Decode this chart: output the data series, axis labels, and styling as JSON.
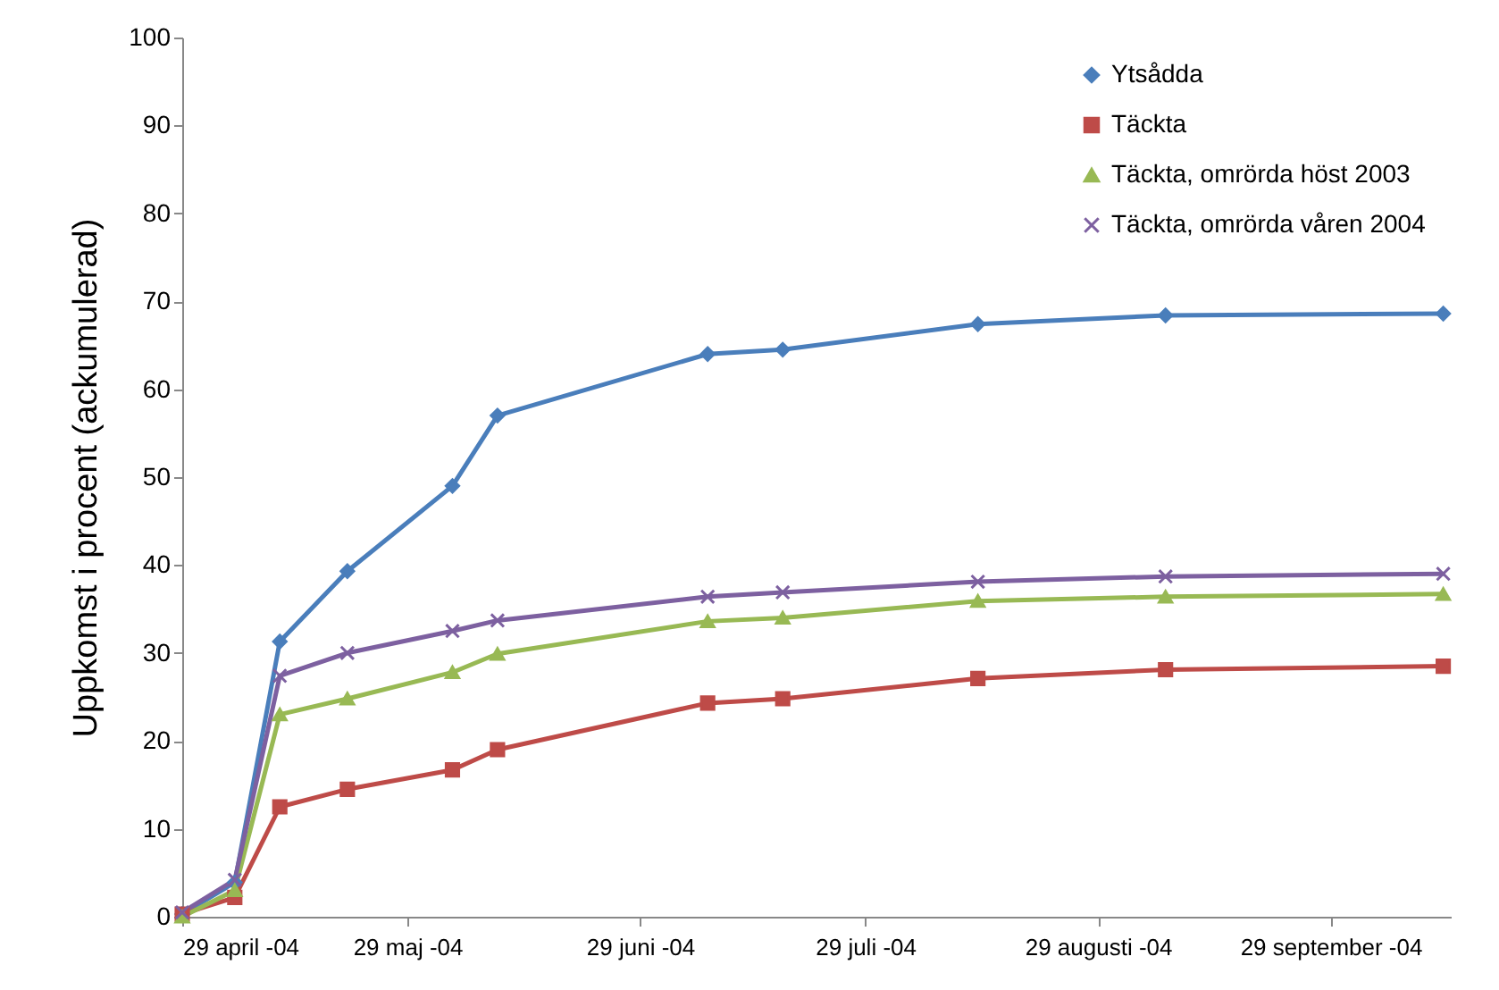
{
  "chart_data": {
    "type": "line",
    "ylabel": "Uppkomst i procent (ackumulerad)",
    "x": [
      "2004-04-29",
      "2004-05-06",
      "2004-05-12",
      "2004-05-21",
      "2004-06-04",
      "2004-06-10",
      "2004-07-08",
      "2004-07-18",
      "2004-08-13",
      "2004-09-07",
      "2004-10-14"
    ],
    "series": [
      {
        "name": "Ytsådda",
        "color": "#4a7ebb",
        "marker": "diamond",
        "values": [
          0.3,
          3.9,
          31.3,
          39.3,
          49,
          57,
          64,
          64.5,
          67.4,
          68.4,
          68.6
        ]
      },
      {
        "name": "Täckta",
        "color": "#be4b48",
        "marker": "square",
        "values": [
          0.3,
          2.2,
          12.5,
          14.5,
          16.7,
          19,
          24.3,
          24.8,
          27.1,
          28.1,
          28.5
        ]
      },
      {
        "name": "Täckta, omrörda höst 2003",
        "color": "#98b954",
        "marker": "triangle",
        "values": [
          0,
          3,
          23,
          24.8,
          27.8,
          29.9,
          33.6,
          34,
          35.9,
          36.4,
          36.7
        ]
      },
      {
        "name": "Täckta, omrörda våren 2004",
        "color": "#7d60a0",
        "marker": "cross",
        "values": [
          0.5,
          4.2,
          27.4,
          30,
          32.5,
          33.7,
          36.4,
          36.9,
          38.1,
          38.7,
          39
        ]
      }
    ],
    "xlim": [
      "2004-04-29",
      "2004-10-15"
    ],
    "xticks": [
      {
        "value": "2004-04-29",
        "label": "29 april -04"
      },
      {
        "value": "2004-05-29",
        "label": "29 maj -04"
      },
      {
        "value": "2004-06-29",
        "label": "29 juni -04"
      },
      {
        "value": "2004-07-29",
        "label": "29 juli -04"
      },
      {
        "value": "2004-08-29",
        "label": "29 augusti -04"
      },
      {
        "value": "2004-09-29",
        "label": "29 september -04"
      }
    ],
    "ylim": [
      0,
      100
    ],
    "yticks": [
      0,
      10,
      20,
      30,
      40,
      50,
      60,
      70,
      80,
      90,
      100
    ],
    "grid": false,
    "legend": "top right",
    "line_style": "solid"
  }
}
